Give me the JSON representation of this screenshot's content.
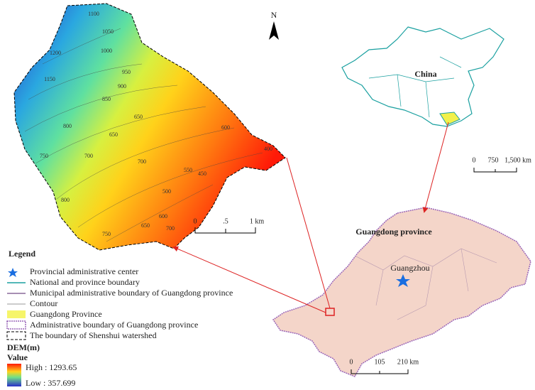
{
  "watershed": {
    "contour_labels": [
      "1100",
      "1050",
      "1200",
      "1000",
      "1150",
      "950",
      "900",
      "850",
      "800",
      "750",
      "700",
      "650",
      "600",
      "550",
      "500",
      "450",
      "400",
      "650",
      "700",
      "800",
      "600",
      "650",
      "700",
      "750"
    ],
    "scale": [
      "0",
      ".5",
      "1 km"
    ]
  },
  "north": "N",
  "china": {
    "label": "China",
    "scale": [
      "0",
      "750",
      "1,500 km"
    ]
  },
  "guangdong": {
    "label": "Guangdong province",
    "city": "Guangzhou",
    "scale": [
      "0",
      "105",
      "210 km"
    ]
  },
  "legend": {
    "title": "Legend",
    "items": [
      "Provincial administrative center",
      "National and province boundary",
      "Municipal administrative boundary of Guangdong province",
      "Contour",
      "Guangdong Province",
      "Administrative boundary of Guangdong province",
      "The boundary of Shenshui watershed"
    ],
    "dem_title": "DEM(m)",
    "dem_subtitle": "Value",
    "high": "High : 1293.65",
    "low": "Low : 357.699"
  }
}
